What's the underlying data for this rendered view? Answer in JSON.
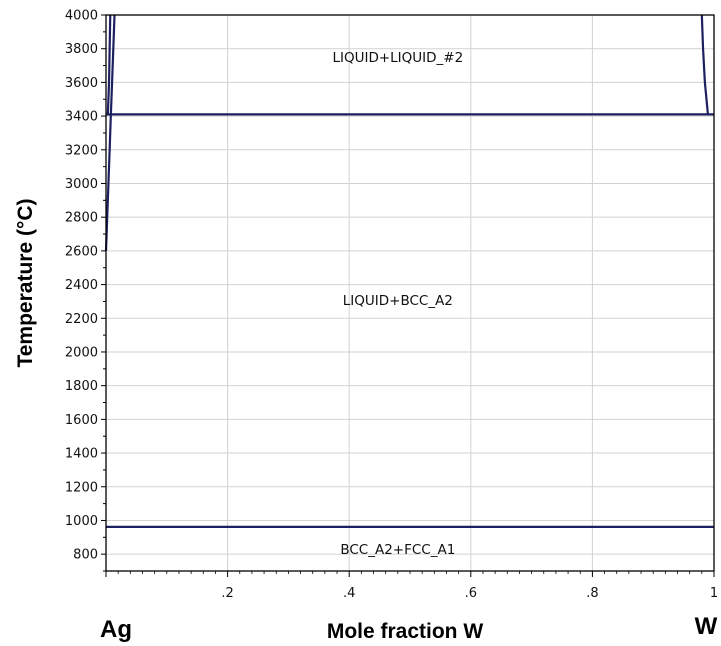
{
  "chart_data": {
    "type": "phase-diagram",
    "xlabel": "Mole fraction W",
    "ylabel": "Temperature (°C)",
    "xlim": [
      0,
      1
    ],
    "ylim": [
      700,
      4000
    ],
    "x_ticks": [
      {
        "value": 0,
        "label": ""
      },
      {
        "value": 0.2,
        "label": ".2"
      },
      {
        "value": 0.4,
        "label": ".4"
      },
      {
        "value": 0.6,
        "label": ".6"
      },
      {
        "value": 0.8,
        "label": ".8"
      },
      {
        "value": 1.0,
        "label": "1"
      }
    ],
    "y_ticks": [
      800,
      1000,
      1200,
      1400,
      1600,
      1800,
      2000,
      2200,
      2400,
      2600,
      2800,
      3000,
      3200,
      3400,
      3600,
      3800,
      4000
    ],
    "grid": true,
    "line_color": "#1c2060",
    "end_labels": {
      "left": "Ag",
      "right": "W"
    },
    "region_labels": [
      {
        "text": "LIQUID+LIQUID_#2",
        "x": 0.48,
        "y": 3720
      },
      {
        "text": "LIQUID+BCC_A2",
        "x": 0.48,
        "y": 2280
      },
      {
        "text": "BCC_A2+FCC_A1",
        "x": 0.48,
        "y": 800
      }
    ],
    "series": [
      {
        "points": [
          [
            0,
            961.8
          ],
          [
            1,
            961.8
          ]
        ]
      },
      {
        "points": [
          [
            0,
            3410
          ],
          [
            1,
            3410
          ]
        ]
      },
      {
        "points": [
          [
            0.0,
            2600
          ],
          [
            0.002,
            2800
          ],
          [
            0.004,
            3000
          ],
          [
            0.006,
            3200
          ],
          [
            0.008,
            3410
          ]
        ]
      },
      {
        "points": [
          [
            0.008,
            3410
          ],
          [
            0.01,
            3600
          ],
          [
            0.012,
            3800
          ],
          [
            0.014,
            4000
          ]
        ]
      },
      {
        "points": [
          [
            0.003,
            3410
          ],
          [
            0.005,
            3600
          ],
          [
            0.006,
            3800
          ],
          [
            0.007,
            4000
          ]
        ]
      },
      {
        "points": [
          [
            0.98,
            4000
          ],
          [
            0.982,
            3800
          ],
          [
            0.985,
            3600
          ],
          [
            0.99,
            3410
          ]
        ]
      }
    ]
  }
}
